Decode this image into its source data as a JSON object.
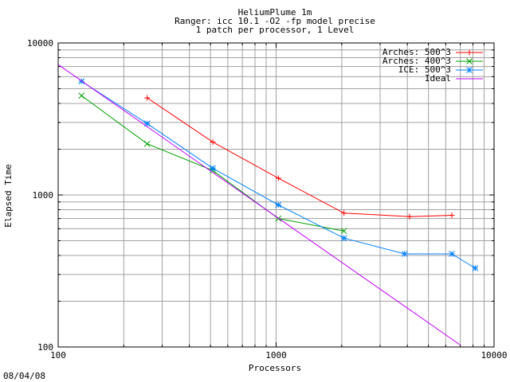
{
  "date_stamp": "08/04/08",
  "chart_data": {
    "type": "line",
    "title": [
      "HeliumPlume 1m",
      "Ranger: icc 10.1 -O2 -fp model precise",
      "1 patch per processor, 1 Level"
    ],
    "xlabel": "Processors",
    "ylabel": "Elapsed Time",
    "x_scale": "log",
    "y_scale": "log",
    "xlim": [
      100,
      10000
    ],
    "ylim": [
      100,
      10000
    ],
    "x_ticks": [
      100,
      1000,
      10000
    ],
    "x_tick_labels": [
      "100",
      "1000",
      "10000"
    ],
    "y_ticks": [
      100,
      1000,
      10000
    ],
    "y_tick_labels": [
      "100",
      "1000",
      "10000"
    ],
    "grid": true,
    "legend_position": "top-right",
    "series": [
      {
        "name": "Arches: 500^3",
        "color": "#ff0000",
        "marker": "plus",
        "x": [
          256,
          512,
          1024,
          2048,
          4096,
          6400
        ],
        "y": [
          4350,
          2230,
          1290,
          760,
          720,
          735
        ]
      },
      {
        "name": "Arches: 400^3",
        "color": "#00a000",
        "marker": "cross",
        "x": [
          128,
          256,
          512,
          1024,
          2048
        ],
        "y": [
          4500,
          2170,
          1450,
          700,
          580
        ]
      },
      {
        "name": "ICE: 500^3",
        "color": "#0080ff",
        "marker": "star",
        "x": [
          128,
          256,
          512,
          1024,
          2048,
          3888,
          6400,
          8192
        ],
        "y": [
          5600,
          2950,
          1500,
          860,
          520,
          410,
          410,
          330
        ]
      },
      {
        "name": "Ideal",
        "color": "#c000ff",
        "marker": "none",
        "x": [
          100,
          1000,
          7000
        ],
        "y": [
          7200,
          720,
          103
        ]
      }
    ]
  }
}
